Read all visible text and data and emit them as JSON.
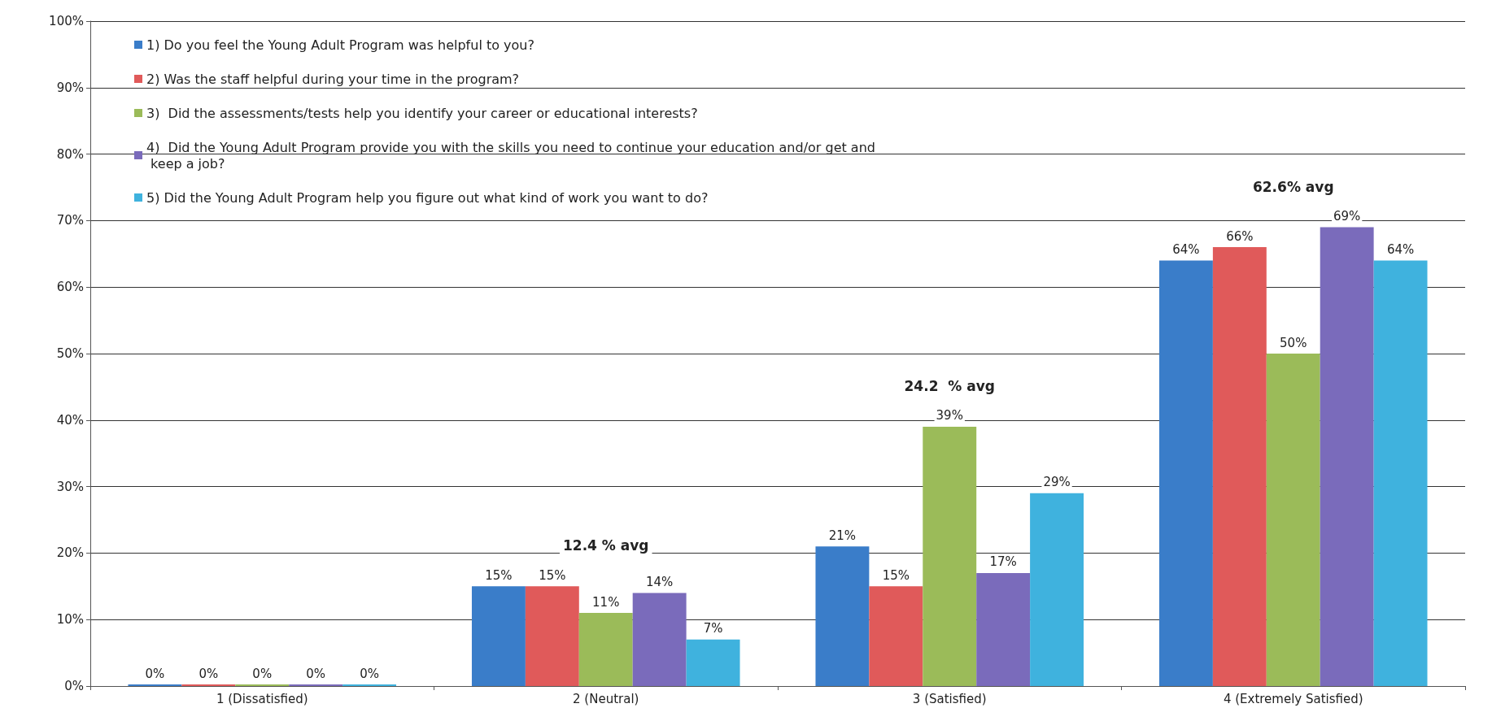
{
  "chart_data": {
    "type": "bar",
    "categories": [
      "1 (Dissatisfied)",
      "2 (Neutral)",
      "3 (Satisfied)",
      "4 (Extremely Satisfied)"
    ],
    "series": [
      {
        "name": "1) Do you feel the Young Adult Program was helpful to you?",
        "color": "#3a7dc9",
        "values": [
          0,
          15,
          21,
          64
        ],
        "value_labels": [
          "0%",
          "15%",
          "21%",
          "64%"
        ]
      },
      {
        "name": "2) Was the staff helpful during your time in the program?",
        "color": "#e05a5a",
        "values": [
          0,
          15,
          15,
          66
        ],
        "value_labels": [
          "0%",
          "15%",
          "15%",
          "66%"
        ]
      },
      {
        "name": "3)  Did the assessments/tests help you identify your career or educational interests?",
        "color": "#9bbb59",
        "values": [
          0,
          11,
          39,
          50
        ],
        "value_labels": [
          "0%",
          "11%",
          "39%",
          "50%"
        ]
      },
      {
        "name": "4)  Did the Young Adult Program provide you with the skills you need to continue your education and/or get and keep a job?",
        "color": "#7a6bbb",
        "values": [
          0,
          14,
          17,
          69
        ],
        "value_labels": [
          "0%",
          "14%",
          "17%",
          "69%"
        ]
      },
      {
        "name": "5) Did the Young Adult Program help you figure out what kind of work you want to do?",
        "color": "#3fb2de",
        "values": [
          0,
          7,
          29,
          64
        ],
        "value_labels": [
          "0%",
          "7%",
          "29%",
          "64%"
        ]
      }
    ],
    "ylim": [
      0,
      100
    ],
    "yticks": [
      {
        "value": 0,
        "label": "0%"
      },
      {
        "value": 10,
        "label": "10%"
      },
      {
        "value": 20,
        "label": "20%"
      },
      {
        "value": 30,
        "label": "30%"
      },
      {
        "value": 40,
        "label": "40%"
      },
      {
        "value": 50,
        "label": "50%"
      },
      {
        "value": 60,
        "label": "60%"
      },
      {
        "value": 70,
        "label": "70%"
      },
      {
        "value": 80,
        "label": "80%"
      },
      {
        "value": 90,
        "label": "90%"
      },
      {
        "value": 100,
        "label": "100%"
      }
    ],
    "annotations": [
      "12.4 % avg",
      "24.2  % avg",
      "62.6% avg"
    ],
    "grid": "y",
    "legend": "top left"
  }
}
